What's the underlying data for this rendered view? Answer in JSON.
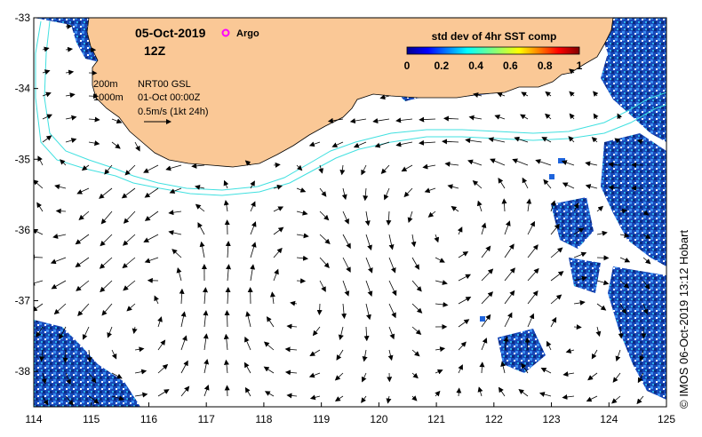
{
  "map": {
    "date": "05-Oct-2019",
    "hour": "12Z",
    "argo_label": "Argo",
    "colorbar_title": "std dev of 4hr SST comp",
    "colorbar_ticks": [
      "0",
      "0.2",
      "0.4",
      "0.6",
      "0.8",
      "1"
    ],
    "isobath_200": "200m",
    "isobath_1000": "1000m",
    "product": "NRT00 GSL",
    "product_time": "01-Oct 00:00Z",
    "scale_label": "0.5m/s (1kt 24h)",
    "credit": "© IMOS 06-Oct-2019 13:12 Hobart",
    "x_ticks": [
      "114",
      "115",
      "116",
      "117",
      "118",
      "119",
      "120",
      "121",
      "122",
      "123",
      "124",
      "125"
    ],
    "y_ticks": [
      "-33",
      "-34",
      "-35",
      "-36",
      "-37",
      "-38"
    ],
    "colors": {
      "land": "#FAC896",
      "isobath": "#40E0E0",
      "argo": "#FF00FF",
      "sst_dark": "#102A8C",
      "sst_mid": "#1E64DC"
    }
  }
}
